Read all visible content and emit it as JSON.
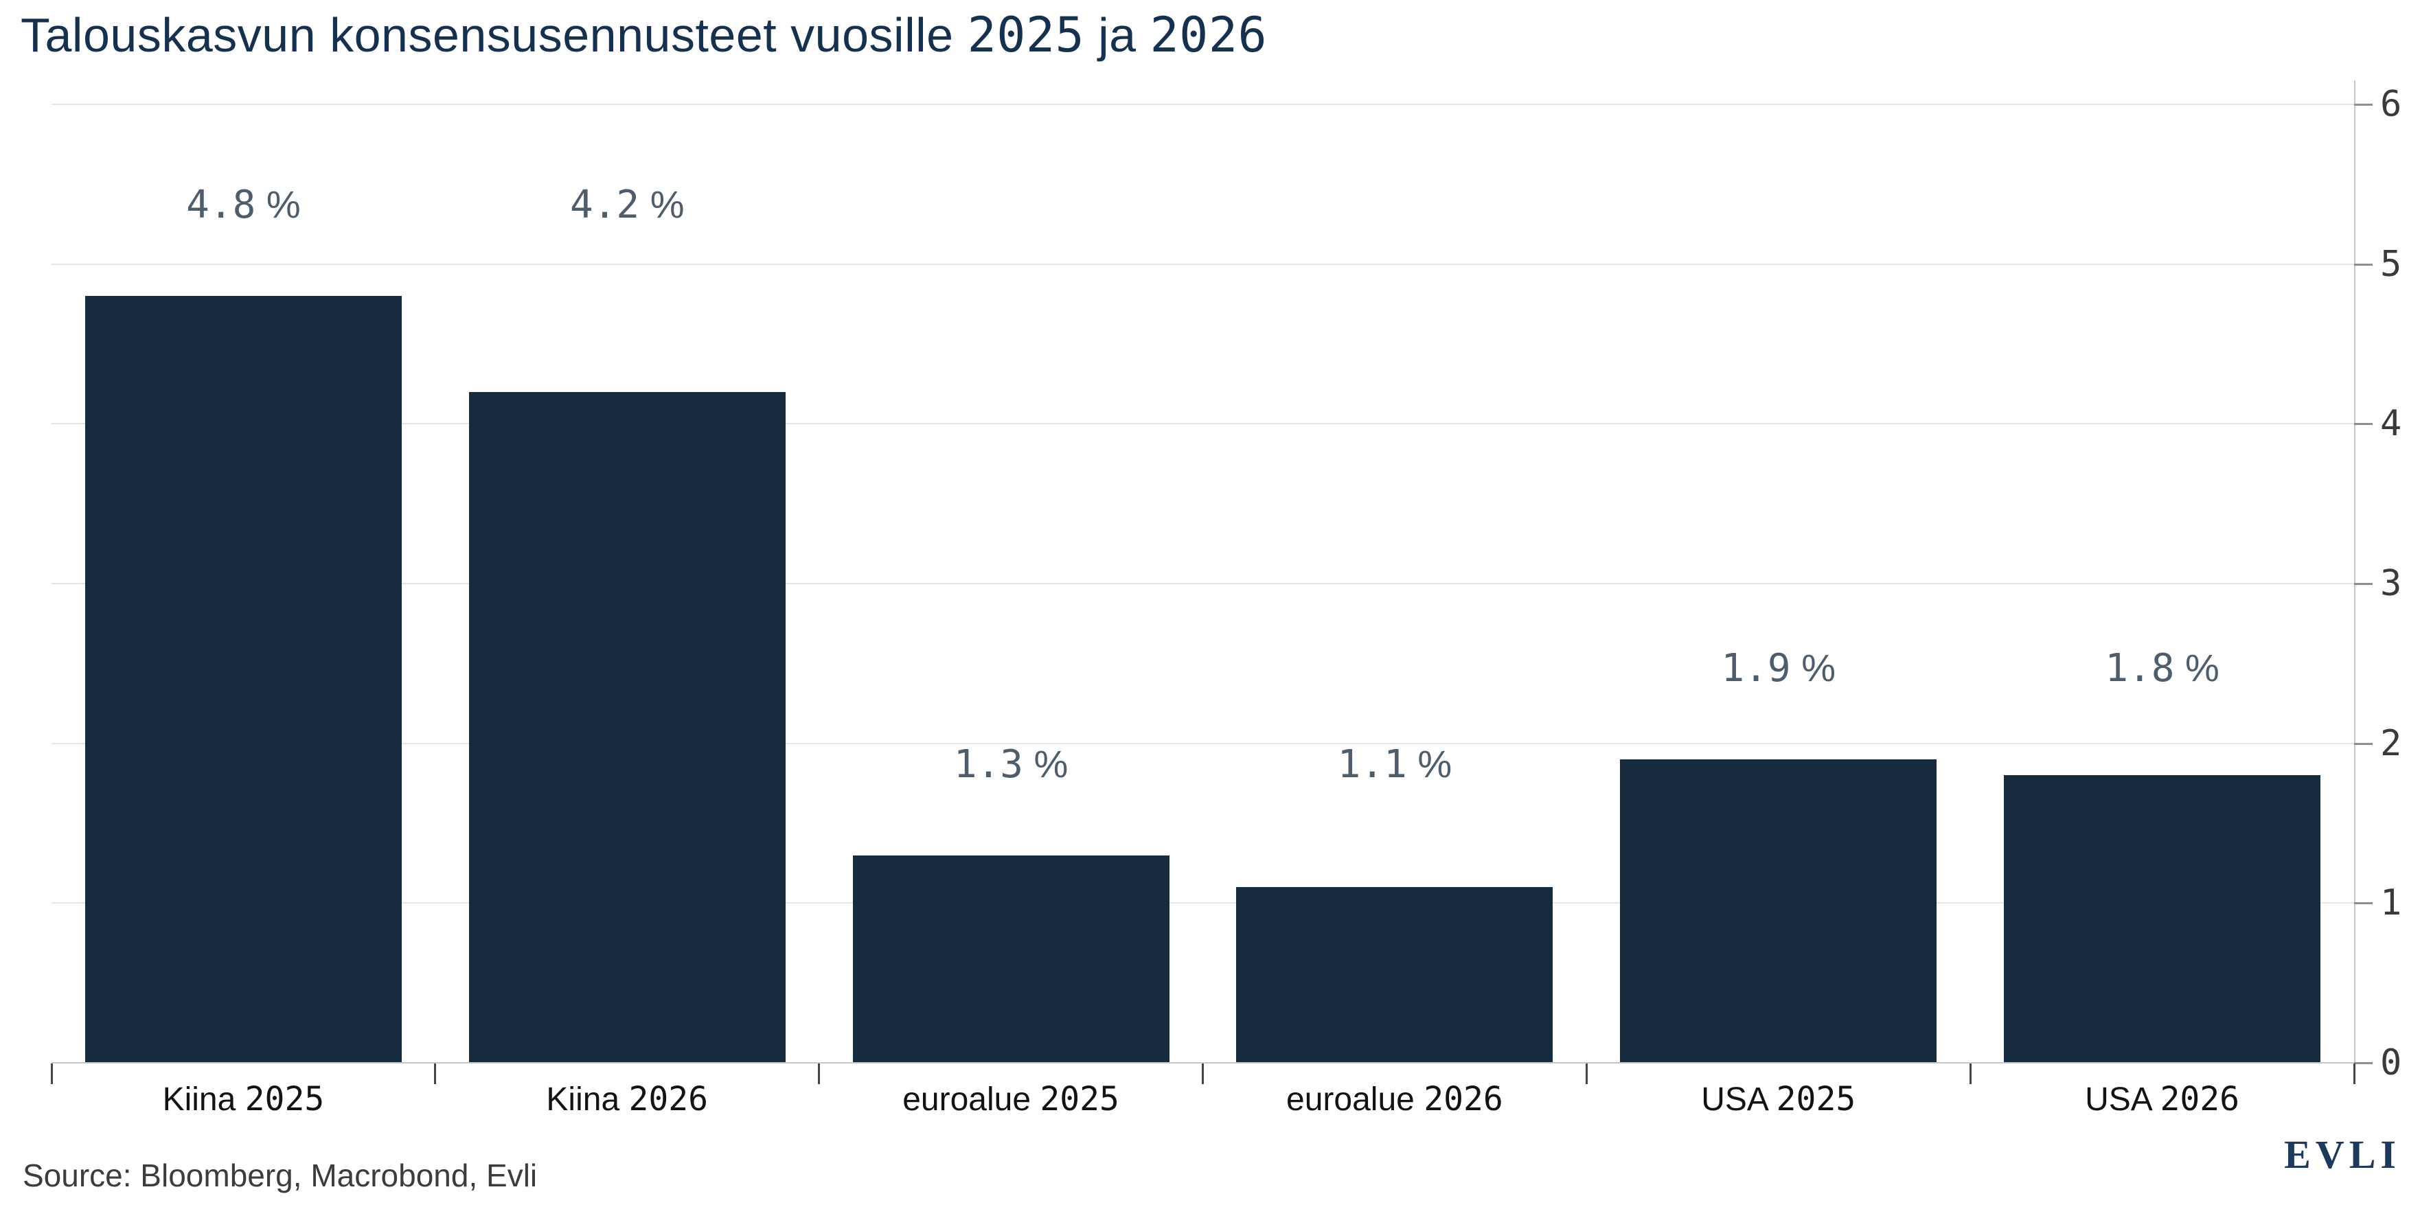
{
  "title": "Talouskasvun konsensusennusteet vuosille 2025 ja 2026",
  "chart_data": {
    "type": "bar",
    "title": "Talouskasvun konsensusennusteet vuosille 2025 ja 2026",
    "categories": [
      "Kiina 2025",
      "Kiina 2026",
      "euroalue 2025",
      "euroalue 2026",
      "USA 2025",
      "USA 2026"
    ],
    "values": [
      4.8,
      4.2,
      1.3,
      1.1,
      1.9,
      1.8
    ],
    "value_labels": [
      "4.8 %",
      "4.2 %",
      "1.3 %",
      "1.1 %",
      "1.9 %",
      "1.8 %"
    ],
    "xlabel": "",
    "ylabel": "",
    "ylim": [
      0,
      6
    ],
    "y_ticks": [
      0,
      1,
      2,
      3,
      4,
      5,
      6
    ],
    "y_axis_position": "right",
    "grid": "horizontal",
    "legend": "none"
  },
  "footer": {
    "source": "Source: Bloomberg, Macrobond, Evli",
    "logo": "EVLI"
  },
  "colors": {
    "background": "#FFFFFF",
    "title": "#163150",
    "bar": "#172B3E",
    "value_label": "#4E5D6C",
    "category_label": "#131313",
    "axis_label": "#3A3A3A",
    "gridline": "#E4E4E4",
    "baseline": "#C6C6C6",
    "axis_line": "#C9C9C9",
    "tick_right": "#8F8F8F",
    "tick_bottom": "#454545",
    "source": "#3C3C3C",
    "logo": "#1D3A5C"
  }
}
